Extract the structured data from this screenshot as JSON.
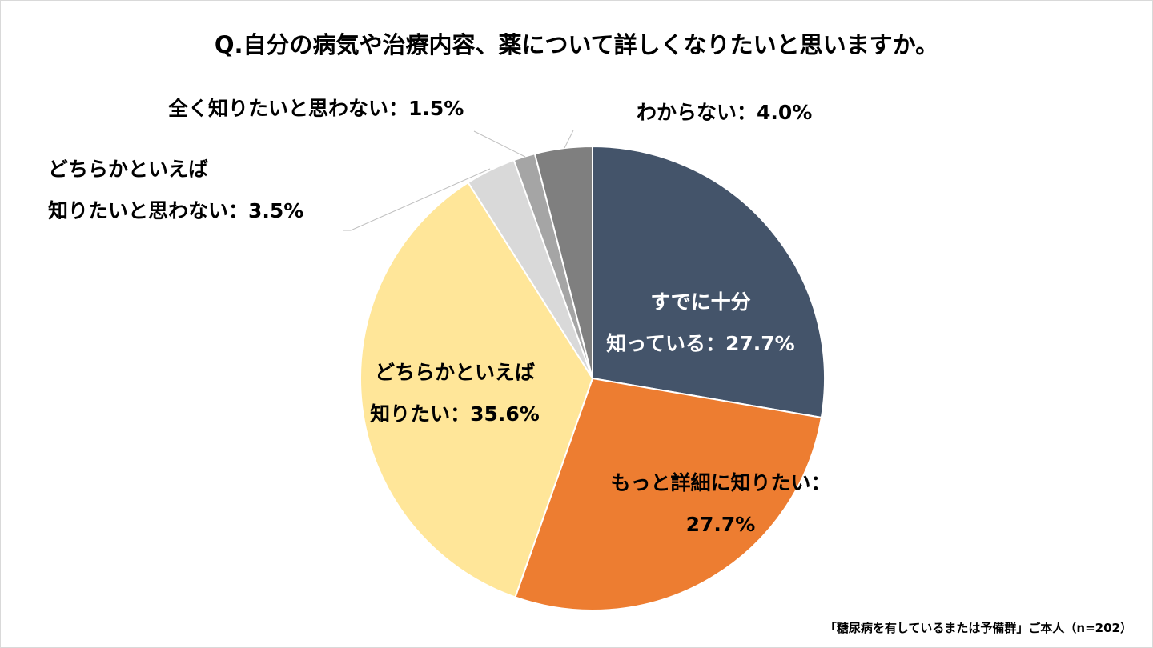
{
  "chart_data": {
    "type": "pie",
    "title": "Q.自分の病気や治療内容、薬について詳しくなりたいと思いますか。",
    "note": "「糖尿病を有しているまたは予備群」ご本人（n=202）",
    "slices": [
      {
        "label_lines": [
          "すでに十分",
          "知っている：27.7%"
        ],
        "value": 27.7,
        "color": "#44546A"
      },
      {
        "label_lines": [
          "もっと詳細に知りたい：",
          "27.7%"
        ],
        "value": 27.7,
        "color": "#ED7D31"
      },
      {
        "label_lines": [
          "どちらかといえば",
          "知りたい：35.6%"
        ],
        "value": 35.6,
        "color": "#FFE699"
      },
      {
        "label_lines": [
          "どちらかといえば",
          "知りたいと思わない：3.5%"
        ],
        "value": 3.5,
        "color": "#D9D9D9"
      },
      {
        "label_lines": [
          "全く知りたいと思わない：1.5%"
        ],
        "value": 1.5,
        "color": "#A5A5A5"
      },
      {
        "label_lines": [
          "わからない：4.0%"
        ],
        "value": 4.0,
        "color": "#7F7F7F"
      }
    ]
  }
}
